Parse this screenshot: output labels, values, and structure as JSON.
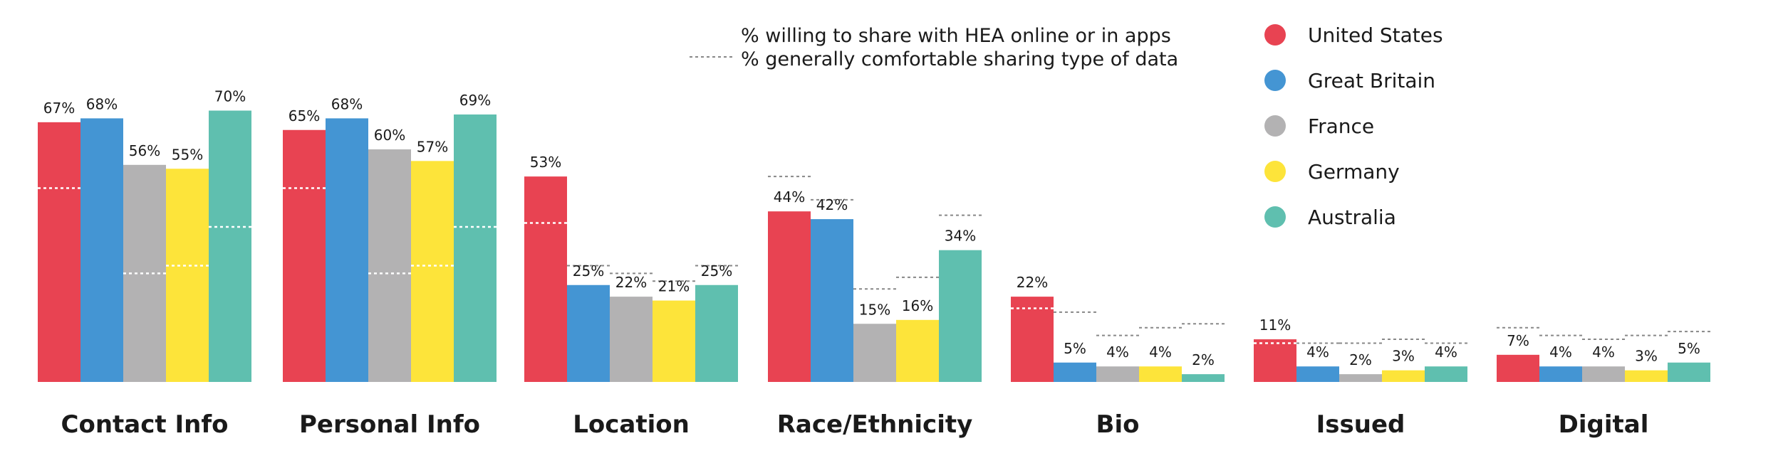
{
  "chart_data": {
    "type": "bar",
    "title": "",
    "xlabel": "",
    "ylabel": "",
    "ylim": [
      0,
      100
    ],
    "grid": false,
    "legend_position": "top-right",
    "categories": [
      "Contact Info",
      "Personal Info",
      "Location",
      "Race/Ethnicity",
      "Bio",
      "Issued",
      "Digital"
    ],
    "series": [
      {
        "name": "United States",
        "color": "#e84352",
        "values": [
          67,
          65,
          53,
          44,
          22,
          11,
          7
        ],
        "labels": [
          "67%",
          "65%",
          "53%",
          "44%",
          "22%",
          "11%",
          "7%"
        ],
        "comfortable": [
          50,
          50,
          41,
          53,
          19,
          10,
          14
        ]
      },
      {
        "name": "Great Britain",
        "color": "#4495d3",
        "values": [
          68,
          68,
          25,
          42,
          5,
          4,
          4
        ],
        "labels": [
          "68%",
          "68%",
          "25%",
          "42%",
          "5%",
          "4%",
          "4%"
        ],
        "comfortable": [
          null,
          null,
          30,
          47,
          18,
          10,
          12
        ]
      },
      {
        "name": "France",
        "color": "#b3b2b3",
        "values": [
          56,
          60,
          22,
          15,
          4,
          2,
          4
        ],
        "labels": [
          "56%",
          "60%",
          "22%",
          "15%",
          "4%",
          "2%",
          "4%"
        ],
        "comfortable": [
          28,
          28,
          28,
          24,
          12,
          10,
          11
        ]
      },
      {
        "name": "Germany",
        "color": "#fde43a",
        "values": [
          55,
          57,
          21,
          16,
          4,
          3,
          3
        ],
        "labels": [
          "55%",
          "57%",
          "21%",
          "16%",
          "4%",
          "3%",
          "3%"
        ],
        "comfortable": [
          30,
          30,
          26,
          27,
          14,
          11,
          12
        ]
      },
      {
        "name": "Australia",
        "color": "#5fbfaf",
        "values": [
          70,
          69,
          25,
          34,
          2,
          4,
          5
        ],
        "labels": [
          "70%",
          "69%",
          "25%",
          "34%",
          "2%",
          "4%",
          "5%"
        ],
        "comfortable": [
          40,
          40,
          30,
          43,
          15,
          10,
          13
        ]
      }
    ],
    "annotations": {
      "solid_bar_note": "% willing to share with HEA online or in apps",
      "dotted_line_note": "% generally comfortable sharing type of data"
    }
  }
}
